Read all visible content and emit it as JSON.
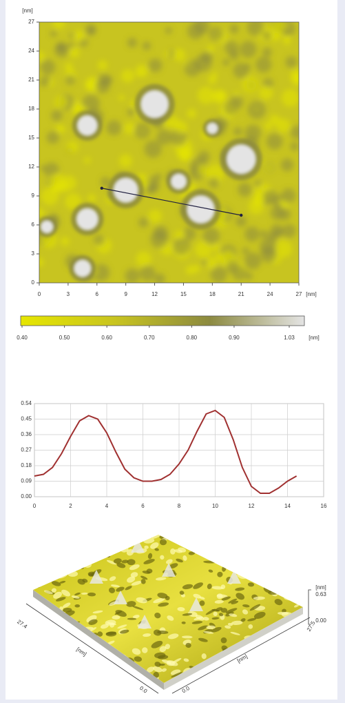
{
  "chart_data": [
    {
      "type": "heatmap",
      "y_label": "[nm]",
      "x_label": "[nm]",
      "xlim": [
        0,
        27
      ],
      "ylim": [
        0,
        27
      ],
      "xticks": [
        0,
        3,
        6,
        9,
        12,
        15,
        18,
        21,
        24,
        27
      ],
      "yticks": [
        0,
        3,
        6,
        9,
        12,
        15,
        18,
        21,
        24,
        27
      ],
      "colorbar": {
        "clim": [
          0.4,
          1.03
        ],
        "label": "[nm]",
        "colors": [
          "#e6e600",
          "#c8c420",
          "#8c8a40",
          "#e4e4e4"
        ],
        "ticks": [
          {
            "value": 0.4,
            "label": "0.40"
          },
          {
            "value": 0.5,
            "label": "0.50"
          },
          {
            "value": 0.6,
            "label": "0.60"
          },
          {
            "value": 0.7,
            "label": "0.70"
          },
          {
            "value": 0.8,
            "label": "0.80"
          },
          {
            "value": 0.9,
            "label": "0.90"
          },
          1.03
        ]
      },
      "profile_line": {
        "x": [
          6.5,
          21
        ],
        "y": [
          9.8,
          7
        ],
        "color": "#202040"
      }
    },
    {
      "type": "line",
      "x": [
        0,
        0.5,
        1,
        1.5,
        2,
        2.5,
        3,
        3.5,
        4,
        4.5,
        5,
        5.5,
        6,
        6.5,
        7,
        7.5,
        8,
        8.5,
        9,
        9.5,
        10,
        10.5,
        11,
        11.5,
        12,
        12.5,
        13,
        13.5,
        14,
        14.5
      ],
      "series": [
        {
          "color": "#a03030",
          "values": [
            0.12,
            0.13,
            0.17,
            0.25,
            0.35,
            0.44,
            0.47,
            0.45,
            0.37,
            0.26,
            0.16,
            0.11,
            0.09,
            0.09,
            0.1,
            0.13,
            0.19,
            0.27,
            0.38,
            0.48,
            0.5,
            0.46,
            0.33,
            0.17,
            0.06,
            0.02,
            0.02,
            0.05,
            0.09,
            0.12
          ]
        }
      ],
      "xlim": [
        0,
        16
      ],
      "ylim": [
        0,
        0.54
      ],
      "xticks": [
        0,
        2,
        4,
        6,
        8,
        10,
        12,
        14,
        16
      ],
      "yticks": [
        {
          "value": 0,
          "label": "0.00"
        },
        0.09,
        0.18,
        0.27,
        0.36,
        0.45,
        0.54
      ],
      "grid": true
    },
    {
      "type": "surface3d",
      "x_label": "[nm]",
      "y_label": "[nm]",
      "z_label": "[nm]",
      "x_range_labels": [
        "0.0",
        "27.5"
      ],
      "y_range_labels": [
        "27.4",
        "0.0"
      ],
      "z_range_labels": [
        "0.63",
        "0.00"
      ]
    }
  ]
}
